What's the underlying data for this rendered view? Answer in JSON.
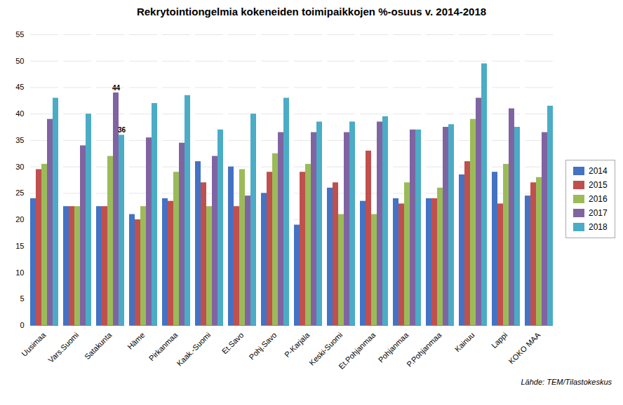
{
  "chart_data": {
    "type": "bar",
    "title": "Rekrytointiongelmia kokeneiden toimipaikkojen %-osuus v. 2014-2018",
    "categories": [
      "Uusimaa",
      "Vars.Suomi",
      "Satakunta",
      "Häme",
      "Pirkanmaa",
      "Kaak.-Suomi",
      "Et.Savo",
      "Pohj.Savo",
      "P-Karjala",
      "Keski-Suomi",
      "Et.Pohjanmaa",
      "Pohjanmaa",
      "P.Pohjanmaa",
      "Kainuu",
      "Lappi",
      "KOKO MAA"
    ],
    "series": [
      {
        "name": "2014",
        "color": "#4472C4",
        "values": [
          24,
          22.5,
          22.5,
          21,
          24,
          31,
          30,
          25,
          19,
          26,
          23.5,
          24,
          24,
          28.5,
          29,
          24.5
        ]
      },
      {
        "name": "2015",
        "color": "#C0504D",
        "values": [
          29.5,
          22.5,
          22.5,
          20,
          23.5,
          27,
          22.5,
          29,
          29,
          27,
          33,
          23,
          24,
          31,
          23,
          27
        ]
      },
      {
        "name": "2016",
        "color": "#9BBB59",
        "values": [
          30.5,
          22.5,
          32,
          22.5,
          29,
          22.5,
          29.5,
          32.5,
          30.5,
          21,
          21,
          27,
          26,
          39,
          30.5,
          28
        ]
      },
      {
        "name": "2017",
        "color": "#8064A2",
        "values": [
          39,
          34,
          44,
          35.5,
          34.5,
          32,
          24.5,
          36.5,
          36.5,
          36.5,
          38.5,
          37,
          37.5,
          43,
          41,
          36.5
        ]
      },
      {
        "name": "2018",
        "color": "#4BACC6",
        "values": [
          43,
          40,
          36,
          42,
          43.5,
          37,
          40,
          43,
          38.5,
          38.5,
          39.5,
          37,
          38,
          49.5,
          37.5,
          41.5
        ]
      }
    ],
    "ylim": [
      0,
      55
    ],
    "yticks": [
      0,
      5,
      10,
      15,
      20,
      25,
      30,
      35,
      40,
      45,
      50,
      55
    ],
    "grid": true,
    "legend": "right",
    "annotations": [
      {
        "text": "44",
        "category": "Satakunta",
        "series": "2017",
        "y": 44
      },
      {
        "text": "36",
        "category": "Satakunta",
        "series": "2018",
        "y": 36
      }
    ],
    "source": "Lähde: TEM/Tilastokeskus"
  }
}
